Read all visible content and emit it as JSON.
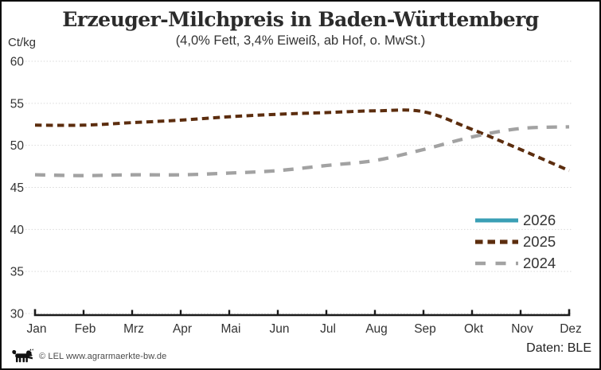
{
  "header": {
    "title": "Erzeuger-Milchpreis in Baden-Württemberg",
    "subtitle": "(4,0% Fett, 3,4% Eiweiß, ab Hof, o. MwSt.)",
    "y_unit": "Ct/kg"
  },
  "chart_data": {
    "type": "line",
    "categories": [
      "Jan",
      "Feb",
      "Mrz",
      "Apr",
      "Mai",
      "Jun",
      "Jul",
      "Aug",
      "Sep",
      "Okt",
      "Nov",
      "Dez"
    ],
    "ylabel": "Ct/kg",
    "ylim": [
      30,
      60
    ],
    "ytick_step": 5,
    "yticks": [
      30,
      35,
      40,
      45,
      50,
      55,
      60
    ],
    "grid": "horizontal dotted",
    "legend_position": "right middle overlay",
    "series": [
      {
        "name": "2026",
        "color": "#3a9fb5",
        "style": "solid",
        "values": []
      },
      {
        "name": "2025",
        "color": "#5c2d0e",
        "style": "dashed",
        "values": [
          52.4,
          52.4,
          52.7,
          53.0,
          53.4,
          53.7,
          53.9,
          54.1,
          54.0,
          51.9,
          49.5,
          47.0
        ]
      },
      {
        "name": "2024",
        "color": "#a2a2a2",
        "style": "long-dashed",
        "values": [
          46.5,
          46.4,
          46.5,
          46.5,
          46.7,
          47.0,
          47.6,
          48.2,
          49.5,
          51.0,
          52.0,
          52.2
        ]
      }
    ],
    "colors": {
      "axis": "#1a1a1a",
      "grid": "#d9d9d9",
      "tick_text": "#333333"
    }
  },
  "footer": {
    "credit": "© LEL www.agrarmaerkte-bw.de",
    "source": "Daten: BLE",
    "logo": "bw-lion"
  }
}
